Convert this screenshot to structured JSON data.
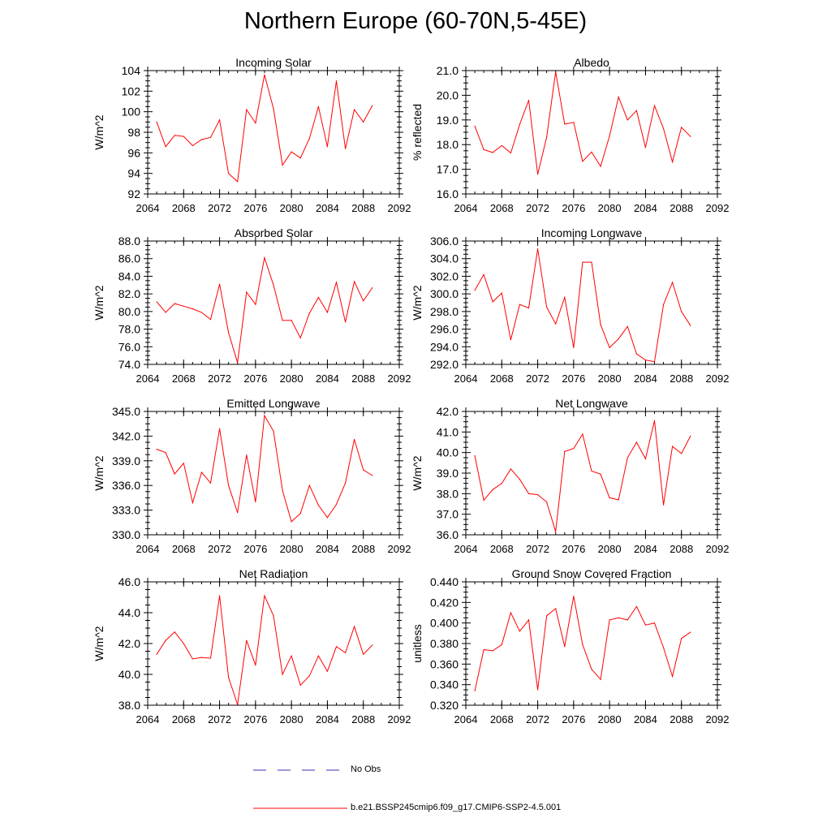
{
  "page": {
    "title": "Northern Europe (60-70N,5-45E)"
  },
  "legend": {
    "obs_label": "No Obs",
    "obs_color": "#3333aa",
    "model_label": "b.e21.BSSP245cmip6.f09_g17.CMIP6-SSP2-4.5.001",
    "model_color": "#ff0000"
  },
  "chart_data": [
    {
      "type": "line",
      "title": "Incoming Solar",
      "xlabel": "",
      "ylabel": "W/m^2",
      "xlim": [
        2064,
        2092
      ],
      "ylim": [
        92,
        104
      ],
      "xticks": [
        2064,
        2068,
        2072,
        2076,
        2080,
        2084,
        2088,
        2092
      ],
      "yticks": [
        "92",
        "94",
        "96",
        "98",
        "100",
        "102",
        "104"
      ],
      "x": [
        2065,
        2066,
        2067,
        2068,
        2069,
        2070,
        2071,
        2072,
        2073,
        2074,
        2075,
        2076,
        2077,
        2078,
        2079,
        2080,
        2081,
        2082,
        2083,
        2084,
        2085,
        2086,
        2087,
        2088,
        2089
      ],
      "series": [
        {
          "name": "b.e21.BSSP245cmip6.f09_g17.CMIP6-SSP2-4.5.001",
          "values": [
            99.0,
            96.6,
            97.7,
            97.6,
            96.7,
            97.3,
            97.5,
            99.2,
            94.0,
            93.2,
            100.2,
            98.9,
            103.6,
            100.3,
            94.8,
            96.1,
            95.5,
            97.4,
            100.5,
            96.6,
            103.0,
            96.4,
            100.2,
            99.0,
            100.6
          ]
        }
      ]
    },
    {
      "type": "line",
      "title": "Albedo",
      "xlabel": "",
      "ylabel": "% reflected",
      "xlim": [
        2064,
        2092
      ],
      "ylim": [
        16.0,
        21.0
      ],
      "xticks": [
        2064,
        2068,
        2072,
        2076,
        2080,
        2084,
        2088,
        2092
      ],
      "yticks": [
        "16.0",
        "17.0",
        "18.0",
        "19.0",
        "20.0",
        "21.0"
      ],
      "x": [
        2065,
        2066,
        2067,
        2068,
        2069,
        2070,
        2071,
        2072,
        2073,
        2074,
        2075,
        2076,
        2077,
        2078,
        2079,
        2080,
        2081,
        2082,
        2083,
        2084,
        2085,
        2086,
        2087,
        2088,
        2089
      ],
      "series": [
        {
          "name": "b.e21.BSSP245cmip6.f09_g17.CMIP6-SSP2-4.5.001",
          "values": [
            18.75,
            17.8,
            17.68,
            17.96,
            17.66,
            18.82,
            19.8,
            16.8,
            18.3,
            20.95,
            18.83,
            18.9,
            17.32,
            17.7,
            17.12,
            18.35,
            19.93,
            19.0,
            19.38,
            17.88,
            19.58,
            18.65,
            17.3,
            18.7,
            18.33
          ]
        }
      ]
    },
    {
      "type": "line",
      "title": "Absorbed Solar",
      "xlabel": "",
      "ylabel": "W/m^2",
      "xlim": [
        2064,
        2092
      ],
      "ylim": [
        74.0,
        88.0
      ],
      "xticks": [
        2064,
        2068,
        2072,
        2076,
        2080,
        2084,
        2088,
        2092
      ],
      "yticks": [
        "74.0",
        "76.0",
        "78.0",
        "80.0",
        "82.0",
        "84.0",
        "86.0",
        "88.0"
      ],
      "x": [
        2065,
        2066,
        2067,
        2068,
        2069,
        2070,
        2071,
        2072,
        2073,
        2074,
        2075,
        2076,
        2077,
        2078,
        2079,
        2080,
        2081,
        2082,
        2083,
        2084,
        2085,
        2086,
        2087,
        2088,
        2089
      ],
      "series": [
        {
          "name": "b.e21.BSSP245cmip6.f09_g17.CMIP6-SSP2-4.5.001",
          "values": [
            81.1,
            79.9,
            80.9,
            80.6,
            80.3,
            79.9,
            79.1,
            83.1,
            77.6,
            74.2,
            82.2,
            80.8,
            86.1,
            83.0,
            79.0,
            79.0,
            77.0,
            79.8,
            81.6,
            79.9,
            83.3,
            78.8,
            83.4,
            81.2,
            82.7
          ]
        }
      ]
    },
    {
      "type": "line",
      "title": "Incoming Longwave",
      "xlabel": "",
      "ylabel": "W/m^2",
      "xlim": [
        2064,
        2092
      ],
      "ylim": [
        292.0,
        306.0
      ],
      "xticks": [
        2064,
        2068,
        2072,
        2076,
        2080,
        2084,
        2088,
        2092
      ],
      "yticks": [
        "292.0",
        "294.0",
        "296.0",
        "298.0",
        "300.0",
        "302.0",
        "304.0",
        "306.0"
      ],
      "x": [
        2065,
        2066,
        2067,
        2068,
        2069,
        2070,
        2071,
        2072,
        2073,
        2074,
        2075,
        2076,
        2077,
        2078,
        2079,
        2080,
        2081,
        2082,
        2083,
        2084,
        2085,
        2086,
        2087,
        2088,
        2089
      ],
      "series": [
        {
          "name": "b.e21.BSSP245cmip6.f09_g17.CMIP6-SSP2-4.5.001",
          "values": [
            300.4,
            302.2,
            299.1,
            300.1,
            294.8,
            298.8,
            298.4,
            305.1,
            298.5,
            296.6,
            299.6,
            293.9,
            303.6,
            303.6,
            296.5,
            293.9,
            294.9,
            296.3,
            293.2,
            292.5,
            292.3,
            298.8,
            301.3,
            298.0,
            296.4
          ]
        }
      ]
    },
    {
      "type": "line",
      "title": "Emitted Longwave",
      "xlabel": "",
      "ylabel": "W/m^2",
      "xlim": [
        2064,
        2092
      ],
      "ylim": [
        330.0,
        345.0
      ],
      "xticks": [
        2064,
        2068,
        2072,
        2076,
        2080,
        2084,
        2088,
        2092
      ],
      "yticks": [
        "330.0",
        "333.0",
        "336.0",
        "339.0",
        "342.0",
        "345.0"
      ],
      "x": [
        2065,
        2066,
        2067,
        2068,
        2069,
        2070,
        2071,
        2072,
        2073,
        2074,
        2075,
        2076,
        2077,
        2078,
        2079,
        2080,
        2081,
        2082,
        2083,
        2084,
        2085,
        2086,
        2087,
        2088,
        2089
      ],
      "series": [
        {
          "name": "b.e21.BSSP245cmip6.f09_g17.CMIP6-SSP2-4.5.001",
          "values": [
            340.4,
            340.0,
            337.4,
            338.7,
            333.9,
            337.6,
            336.3,
            342.9,
            336.0,
            332.7,
            339.7,
            334.0,
            344.5,
            342.6,
            335.4,
            331.6,
            332.6,
            336.0,
            333.6,
            332.1,
            333.7,
            336.3,
            341.6,
            337.9,
            337.2
          ]
        }
      ]
    },
    {
      "type": "line",
      "title": "Net Longwave",
      "xlabel": "",
      "ylabel": "W/m^2",
      "xlim": [
        2064,
        2092
      ],
      "ylim": [
        36.0,
        42.0
      ],
      "xticks": [
        2064,
        2068,
        2072,
        2076,
        2080,
        2084,
        2088,
        2092
      ],
      "yticks": [
        "36.0",
        "37.0",
        "38.0",
        "39.0",
        "40.0",
        "41.0",
        "42.0"
      ],
      "x": [
        2065,
        2066,
        2067,
        2068,
        2069,
        2070,
        2071,
        2072,
        2073,
        2074,
        2075,
        2076,
        2077,
        2078,
        2079,
        2080,
        2081,
        2082,
        2083,
        2084,
        2085,
        2086,
        2087,
        2088,
        2089
      ],
      "series": [
        {
          "name": "b.e21.BSSP245cmip6.f09_g17.CMIP6-SSP2-4.5.001",
          "values": [
            39.85,
            37.68,
            38.2,
            38.5,
            39.2,
            38.7,
            38.0,
            37.95,
            37.6,
            36.15,
            40.05,
            40.2,
            40.9,
            39.1,
            38.95,
            37.8,
            37.7,
            39.75,
            40.5,
            39.7,
            41.55,
            37.45,
            40.3,
            39.95,
            40.8
          ]
        }
      ]
    },
    {
      "type": "line",
      "title": "Net Radiation",
      "xlabel": "",
      "ylabel": "W/m^2",
      "xlim": [
        2064,
        2092
      ],
      "ylim": [
        38.0,
        46.0
      ],
      "xticks": [
        2064,
        2068,
        2072,
        2076,
        2080,
        2084,
        2088,
        2092
      ],
      "yticks": [
        "38.0",
        "40.0",
        "42.0",
        "44.0",
        "46.0"
      ],
      "x": [
        2065,
        2066,
        2067,
        2068,
        2069,
        2070,
        2071,
        2072,
        2073,
        2074,
        2075,
        2076,
        2077,
        2078,
        2079,
        2080,
        2081,
        2082,
        2083,
        2084,
        2085,
        2086,
        2087,
        2088,
        2089
      ],
      "series": [
        {
          "name": "b.e21.BSSP245cmip6.f09_g17.CMIP6-SSP2-4.5.001",
          "values": [
            41.3,
            42.2,
            42.75,
            42.0,
            41.0,
            41.1,
            41.05,
            45.1,
            39.8,
            38.05,
            42.2,
            40.6,
            45.1,
            43.8,
            40.0,
            41.2,
            39.3,
            39.9,
            41.2,
            40.2,
            41.8,
            41.4,
            43.1,
            41.3,
            41.9
          ]
        }
      ]
    },
    {
      "type": "line",
      "title": "Ground Snow Covered Fraction",
      "xlabel": "",
      "ylabel": "unitless",
      "xlim": [
        2064,
        2092
      ],
      "ylim": [
        0.32,
        0.44
      ],
      "xticks": [
        2064,
        2068,
        2072,
        2076,
        2080,
        2084,
        2088,
        2092
      ],
      "yticks": [
        "0.320",
        "0.340",
        "0.360",
        "0.380",
        "0.400",
        "0.420",
        "0.440"
      ],
      "x": [
        2065,
        2066,
        2067,
        2068,
        2069,
        2070,
        2071,
        2072,
        2073,
        2074,
        2075,
        2076,
        2077,
        2078,
        2079,
        2080,
        2081,
        2082,
        2083,
        2084,
        2085,
        2086,
        2087,
        2088,
        2089
      ],
      "series": [
        {
          "name": "b.e21.BSSP245cmip6.f09_g17.CMIP6-SSP2-4.5.001",
          "values": [
            0.334,
            0.374,
            0.373,
            0.379,
            0.41,
            0.392,
            0.403,
            0.335,
            0.407,
            0.414,
            0.377,
            0.426,
            0.379,
            0.355,
            0.345,
            0.403,
            0.405,
            0.403,
            0.416,
            0.398,
            0.4,
            0.376,
            0.348,
            0.385,
            0.391
          ]
        }
      ]
    }
  ]
}
